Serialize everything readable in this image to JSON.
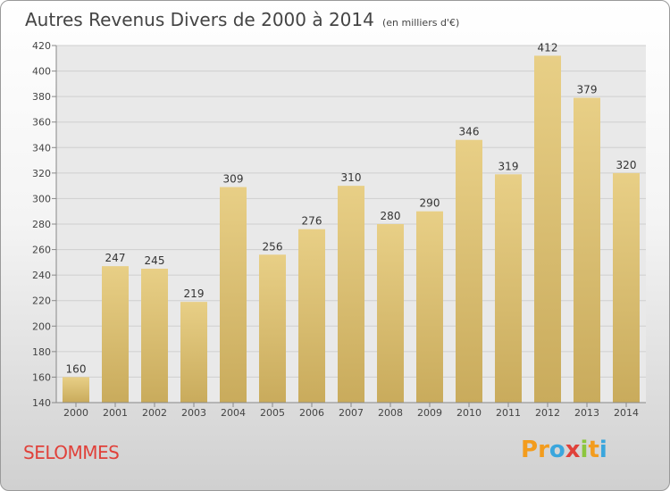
{
  "chart_data": {
    "type": "bar",
    "title": "Autres Revenus Divers de 2000 à 2014",
    "subtitle": "(en milliers d'€)",
    "categories": [
      "2000",
      "2001",
      "2002",
      "2003",
      "2004",
      "2005",
      "2006",
      "2007",
      "2008",
      "2009",
      "2010",
      "2011",
      "2012",
      "2013",
      "2014"
    ],
    "values": [
      160,
      247,
      245,
      219,
      309,
      256,
      276,
      310,
      280,
      290,
      346,
      319,
      412,
      379,
      320
    ],
    "ylim": [
      140,
      420
    ],
    "yticks": [
      140,
      160,
      180,
      200,
      220,
      240,
      260,
      280,
      300,
      320,
      340,
      360,
      380,
      400,
      420
    ],
    "grid": true,
    "bar_color": "#e8cf86",
    "bar_color_dark": "#c9ab5c"
  },
  "location": "SELOMMES",
  "logo": {
    "letters": [
      "P",
      "r",
      "o",
      "x",
      "i",
      "t",
      "i"
    ],
    "colors": [
      "#f39c1d",
      "#f39c1d",
      "#3aa6dd",
      "#e0413a",
      "#8cc63e",
      "#f39c1d",
      "#3aa6dd"
    ]
  }
}
